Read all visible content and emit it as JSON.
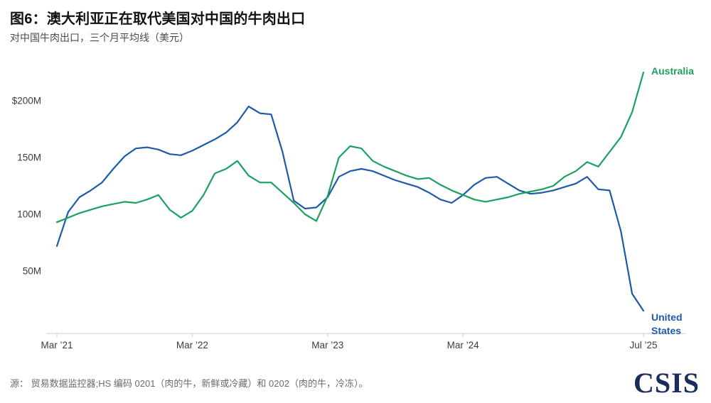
{
  "header": {
    "title": "图6：澳大利亚正在取代美国对中国的牛肉出口",
    "subtitle": "对中国牛肉出口，三个月平均线（美元）"
  },
  "footer": {
    "source": "源： 贸易数据监控器;HS 编码 0201（肉的牛，新鲜或冷藏）和 0202（肉的牛，冷冻）。",
    "logo": "CSIS",
    "logo_color": "#1a2c5b"
  },
  "chart_data": {
    "type": "line",
    "title": "图6：澳大利亚正在取代美国对中国的牛肉出口",
    "subtitle": "对中国牛肉出口，三个月平均线（美元）",
    "x_unit": "month",
    "grid": false,
    "legend_position": "line-end-labels",
    "ylim": [
      -5,
      235
    ],
    "y_ticks": [
      {
        "label": "$200M",
        "value": 200
      },
      {
        "label": "150M",
        "value": 150
      },
      {
        "label": "100M",
        "value": 100
      },
      {
        "label": "50M",
        "value": 50
      }
    ],
    "x_ticks": [
      {
        "label": "Mar ’21",
        "month_index": 0
      },
      {
        "label": "Mar ’22",
        "month_index": 12
      },
      {
        "label": "Mar ’23",
        "month_index": 24
      },
      {
        "label": "Mar ’24",
        "month_index": 36
      },
      {
        "label": "Jul ’25",
        "month_index": 52
      }
    ],
    "x_months": [
      "2021-03",
      "2021-04",
      "2021-05",
      "2021-06",
      "2021-07",
      "2021-08",
      "2021-09",
      "2021-10",
      "2021-11",
      "2021-12",
      "2022-01",
      "2022-02",
      "2022-03",
      "2022-04",
      "2022-05",
      "2022-06",
      "2022-07",
      "2022-08",
      "2022-09",
      "2022-10",
      "2022-11",
      "2022-12",
      "2023-01",
      "2023-02",
      "2023-03",
      "2023-04",
      "2023-05",
      "2023-06",
      "2023-07",
      "2023-08",
      "2023-09",
      "2023-10",
      "2023-11",
      "2023-12",
      "2024-01",
      "2024-02",
      "2024-03",
      "2024-04",
      "2024-05",
      "2024-06",
      "2024-07",
      "2024-08",
      "2024-09",
      "2024-10",
      "2024-11",
      "2024-12",
      "2025-01",
      "2025-02",
      "2025-03",
      "2025-04",
      "2025-05",
      "2025-06",
      "2025-07"
    ],
    "unit": "USD millions",
    "series": [
      {
        "name": "Australia",
        "color": "#1ca05f",
        "values": [
          93,
          97,
          101,
          104,
          107,
          109,
          111,
          110,
          113,
          117,
          104,
          97,
          103,
          117,
          136,
          140,
          147,
          134,
          128,
          128,
          119,
          110,
          100,
          94,
          116,
          150,
          160,
          158,
          147,
          142,
          138,
          134,
          131,
          132,
          126,
          121,
          117,
          113,
          111,
          113,
          115,
          118,
          120,
          122,
          125,
          133,
          138,
          146,
          142,
          155,
          168,
          190,
          225
        ]
      },
      {
        "name": "United States",
        "color": "#1e5ba6",
        "values": [
          72,
          102,
          115,
          121,
          128,
          140,
          151,
          158,
          159,
          157,
          153,
          152,
          156,
          161,
          166,
          172,
          181,
          195,
          189,
          188,
          155,
          112,
          105,
          106,
          115,
          133,
          138,
          140,
          138,
          134,
          130,
          127,
          124,
          119,
          113,
          110,
          117,
          126,
          132,
          133,
          127,
          121,
          118,
          119,
          121,
          124,
          127,
          133,
          122,
          121,
          85,
          30,
          15
        ]
      }
    ]
  }
}
